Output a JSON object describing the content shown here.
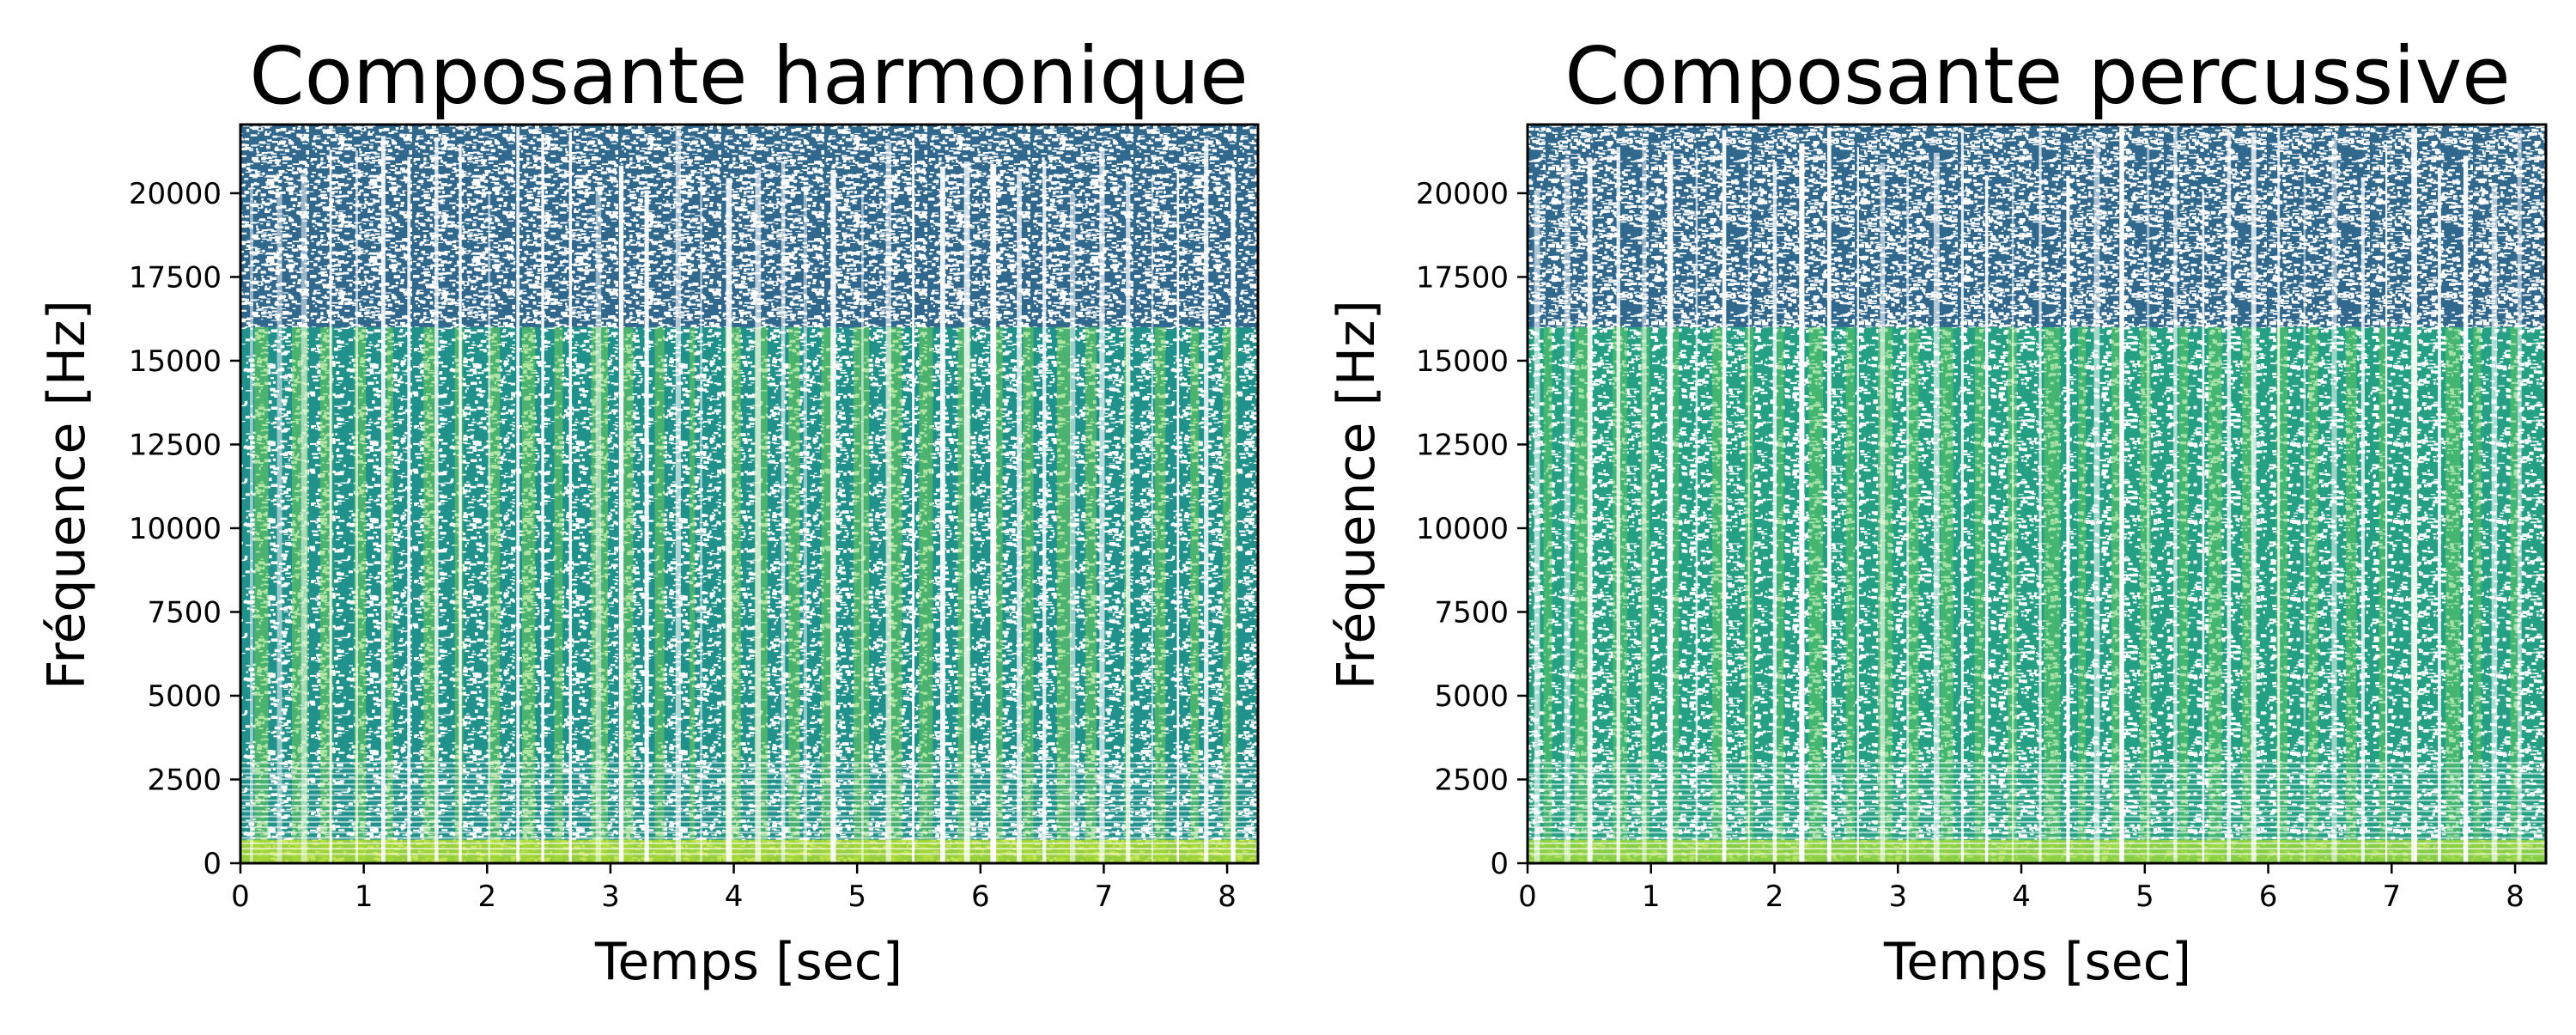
{
  "chart_data": [
    {
      "type": "heatmap",
      "title": "Composante harmonique",
      "xlabel": "Temps [sec]",
      "ylabel": "Fréquence [Hz]",
      "xlim": [
        0,
        8.25
      ],
      "ylim": [
        0,
        22050
      ],
      "xticks": [
        0,
        1,
        2,
        3,
        4,
        5,
        6,
        7,
        8
      ],
      "yticks": [
        0,
        2500,
        5000,
        7500,
        10000,
        12500,
        15000,
        17500,
        20000
      ],
      "colormap": "viridis",
      "colors": {
        "high_band": "#31688e",
        "mid_band": "#21918c",
        "bright": "#6ece58",
        "brightest": "#b5de2b"
      },
      "band_cutoff_hz": 16000,
      "grid": false
    },
    {
      "type": "heatmap",
      "title": "Composante percussive",
      "xlabel": "Temps [sec]",
      "ylabel": "Fréquence [Hz]",
      "xlim": [
        0,
        8.25
      ],
      "ylim": [
        0,
        22050
      ],
      "xticks": [
        0,
        1,
        2,
        3,
        4,
        5,
        6,
        7,
        8
      ],
      "yticks": [
        0,
        2500,
        5000,
        7500,
        10000,
        12500,
        15000,
        17500,
        20000
      ],
      "colormap": "viridis",
      "colors": {
        "high_band": "#31688e",
        "mid_band": "#25a085",
        "bright": "#5ec962",
        "brightest": "#a0da39"
      },
      "band_cutoff_hz": 16000,
      "grid": false
    }
  ]
}
